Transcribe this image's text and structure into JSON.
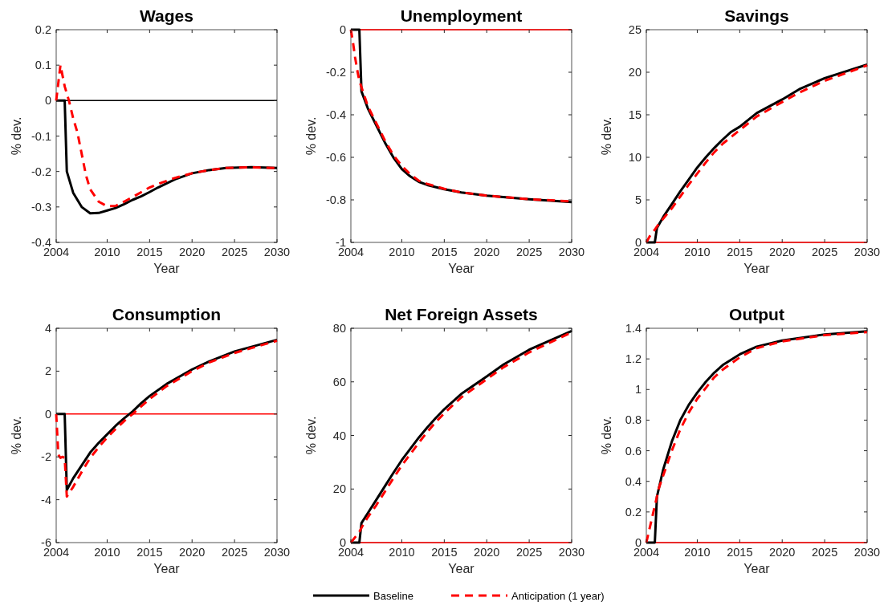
{
  "chart_data": [
    {
      "type": "line",
      "title": "Wages",
      "xlabel": "Year",
      "ylabel": "% dev.",
      "xlim": [
        2004,
        2030
      ],
      "xticks": [
        2004,
        2010,
        2015,
        2020,
        2025,
        2030
      ],
      "ylim": [
        -0.4,
        0.2
      ],
      "yticks": [
        -0.4,
        -0.3,
        -0.2,
        -0.1,
        0,
        0.1,
        0.2
      ],
      "legend": "bottom",
      "series": [
        {
          "color": "#000000",
          "line_style": "solid",
          "x": [
            2004,
            2030
          ],
          "values": [
            0,
            0
          ]
        },
        {
          "name": "Baseline",
          "color": "#000000",
          "line_style": "solid",
          "x": [
            2004,
            2005,
            2005.25,
            2006,
            2007,
            2008,
            2009,
            2010,
            2011,
            2012,
            2013,
            2014,
            2015,
            2016,
            2018,
            2020,
            2022,
            2024,
            2027,
            2030
          ],
          "values": [
            0,
            0,
            -0.2,
            -0.26,
            -0.3,
            -0.318,
            -0.317,
            -0.31,
            -0.303,
            -0.292,
            -0.28,
            -0.27,
            -0.258,
            -0.245,
            -0.222,
            -0.205,
            -0.196,
            -0.19,
            -0.188,
            -0.19
          ]
        },
        {
          "name": "Anticipation (1 year)",
          "color": "#ff0000",
          "line_style": "dashed",
          "x": [
            2004,
            2004.5,
            2005,
            2005.5,
            2006,
            2006.5,
            2007,
            2007.5,
            2008,
            2009,
            2010,
            2011,
            2012,
            2013,
            2015,
            2016,
            2018,
            2020,
            2022,
            2024,
            2027,
            2030
          ],
          "values": [
            0,
            0.1,
            0.04,
            0,
            -0.05,
            -0.09,
            -0.15,
            -0.21,
            -0.25,
            -0.285,
            -0.298,
            -0.297,
            -0.285,
            -0.272,
            -0.245,
            -0.235,
            -0.218,
            -0.205,
            -0.196,
            -0.19,
            -0.188,
            -0.19
          ]
        }
      ]
    },
    {
      "type": "line",
      "title": "Unemployment",
      "xlabel": "Year",
      "ylabel": "% dev.",
      "xlim": [
        2004,
        2030
      ],
      "xticks": [
        2004,
        2010,
        2015,
        2020,
        2025,
        2030
      ],
      "ylim": [
        -1,
        0
      ],
      "yticks": [
        -1,
        -0.8,
        -0.6,
        -0.4,
        -0.2,
        0
      ],
      "series": [
        {
          "color": "#ff0000",
          "line_style": "solid",
          "x": [
            2004,
            2030
          ],
          "values": [
            0,
            0
          ]
        },
        {
          "color": "#000000",
          "line_style": "solid",
          "x": [
            2004,
            2005,
            2005.25,
            2006,
            2007,
            2008,
            2009,
            2010,
            2011,
            2012,
            2013,
            2015,
            2017,
            2020,
            2025,
            2030
          ],
          "values": [
            0,
            0,
            -0.29,
            -0.37,
            -0.45,
            -0.53,
            -0.6,
            -0.655,
            -0.69,
            -0.715,
            -0.73,
            -0.75,
            -0.765,
            -0.78,
            -0.797,
            -0.81
          ]
        },
        {
          "color": "#ff0000",
          "line_style": "dashed",
          "x": [
            2004,
            2004.25,
            2004.5,
            2004.75,
            2005,
            2005.5,
            2006,
            2007,
            2008,
            2009,
            2010,
            2011,
            2012,
            2013,
            2015,
            2017,
            2020,
            2025,
            2030
          ],
          "values": [
            0,
            -0.06,
            -0.13,
            -0.19,
            -0.24,
            -0.3,
            -0.36,
            -0.44,
            -0.52,
            -0.59,
            -0.64,
            -0.68,
            -0.71,
            -0.725,
            -0.748,
            -0.765,
            -0.78,
            -0.797,
            -0.807
          ]
        }
      ]
    },
    {
      "type": "line",
      "title": "Savings",
      "xlabel": "Year",
      "ylabel": "% dev.",
      "xlim": [
        2004,
        2030
      ],
      "xticks": [
        2004,
        2010,
        2015,
        2020,
        2025,
        2030
      ],
      "ylim": [
        0,
        25
      ],
      "yticks": [
        0,
        5,
        10,
        15,
        20,
        25
      ],
      "series": [
        {
          "color": "#ff0000",
          "line_style": "solid",
          "x": [
            2004,
            2030
          ],
          "values": [
            0,
            0
          ]
        },
        {
          "color": "#000000",
          "line_style": "solid",
          "x": [
            2004,
            2005,
            2005.25,
            2006,
            2007,
            2008,
            2009,
            2010,
            2011,
            2012,
            2013,
            2014,
            2015,
            2017,
            2020,
            2022,
            2025,
            2030
          ],
          "values": [
            0,
            0,
            1.7,
            3,
            4.5,
            6,
            7.4,
            8.8,
            10,
            11.1,
            12.1,
            13,
            13.6,
            15.2,
            16.8,
            18,
            19.3,
            20.9
          ]
        },
        {
          "color": "#ff0000",
          "line_style": "dashed",
          "x": [
            2004,
            2004.5,
            2005,
            2005.5,
            2006,
            2007,
            2008,
            2009,
            2010,
            2011,
            2012,
            2013,
            2015,
            2017,
            2020,
            2022,
            2025,
            2030
          ],
          "values": [
            0,
            0.9,
            1.5,
            2.2,
            2.8,
            4,
            5.4,
            6.8,
            8.1,
            9.4,
            10.6,
            11.6,
            13.2,
            14.8,
            16.5,
            17.6,
            19,
            20.8
          ]
        }
      ]
    },
    {
      "type": "line",
      "title": "Consumption",
      "xlabel": "Year",
      "ylabel": "% dev.",
      "xlim": [
        2004,
        2030
      ],
      "xticks": [
        2004,
        2010,
        2015,
        2020,
        2025,
        2030
      ],
      "ylim": [
        -6,
        4
      ],
      "yticks": [
        -6,
        -4,
        -2,
        0,
        2,
        4
      ],
      "series": [
        {
          "color": "#ff0000",
          "line_style": "solid",
          "x": [
            2004,
            2030
          ],
          "values": [
            0,
            0
          ]
        },
        {
          "color": "#000000",
          "line_style": "solid",
          "x": [
            2004,
            2005,
            2005.25,
            2006,
            2007,
            2008,
            2009,
            2010,
            2011,
            2012,
            2013,
            2014,
            2015,
            2017,
            2020,
            2022,
            2025,
            2030
          ],
          "values": [
            0,
            0,
            -3.55,
            -3,
            -2.4,
            -1.8,
            -1.35,
            -0.95,
            -0.55,
            -0.2,
            0.12,
            0.5,
            0.84,
            1.4,
            2.08,
            2.45,
            2.92,
            3.46
          ]
        },
        {
          "color": "#ff0000",
          "line_style": "dashed",
          "x": [
            2004,
            2004.25,
            2004.5,
            2004.75,
            2005,
            2005.25,
            2005.5,
            2006,
            2007,
            2008,
            2009,
            2010,
            2011,
            2012,
            2013,
            2014,
            2015,
            2017,
            2020,
            2022,
            2025,
            2030
          ],
          "values": [
            0,
            -1.9,
            -2.05,
            -2,
            -2.05,
            -3.85,
            -3.7,
            -3.4,
            -2.7,
            -2.05,
            -1.55,
            -1.1,
            -0.7,
            -0.33,
            0,
            0.35,
            0.7,
            1.3,
            2,
            2.4,
            2.85,
            3.42
          ]
        }
      ]
    },
    {
      "type": "line",
      "title": "Net Foreign Assets",
      "xlabel": "Year",
      "ylabel": "% dev.",
      "xlim": [
        2004,
        2030
      ],
      "xticks": [
        2004,
        2010,
        2015,
        2020,
        2025,
        2030
      ],
      "ylim": [
        0,
        80
      ],
      "yticks": [
        0,
        20,
        40,
        60,
        80
      ],
      "series": [
        {
          "color": "#ff0000",
          "line_style": "solid",
          "x": [
            2004,
            2030
          ],
          "values": [
            0,
            0
          ]
        },
        {
          "color": "#000000",
          "line_style": "solid",
          "x": [
            2004,
            2005,
            2005.25,
            2006,
            2007,
            2008,
            2009,
            2010,
            2011,
            2012,
            2013,
            2014,
            2015,
            2017,
            2020,
            2022,
            2025,
            2030
          ],
          "values": [
            0,
            0,
            7.3,
            11,
            16,
            21,
            26,
            30.8,
            35,
            39.2,
            43,
            46.5,
            49.8,
            55.5,
            62,
            66.5,
            72,
            79
          ]
        },
        {
          "color": "#ff0000",
          "line_style": "dashed",
          "x": [
            2004,
            2004.5,
            2005,
            2005.5,
            2006,
            2007,
            2008,
            2009,
            2010,
            2011,
            2012,
            2013,
            2014,
            2015,
            2017,
            2020,
            2022,
            2025,
            2030
          ],
          "values": [
            0,
            2,
            4,
            7,
            9.5,
            14,
            19,
            24,
            28.8,
            33,
            37.3,
            41.3,
            45,
            48.3,
            54.2,
            61,
            65.5,
            71,
            78.5
          ]
        }
      ]
    },
    {
      "type": "line",
      "title": "Output",
      "xlabel": "Year",
      "ylabel": "% dev.",
      "xlim": [
        2004,
        2030
      ],
      "xticks": [
        2004,
        2010,
        2015,
        2020,
        2025,
        2030
      ],
      "ylim": [
        0,
        1.4
      ],
      "yticks": [
        0,
        0.2,
        0.4,
        0.6,
        0.8,
        1,
        1.2,
        1.4
      ],
      "series": [
        {
          "color": "#ff0000",
          "line_style": "solid",
          "x": [
            2004,
            2030
          ],
          "values": [
            0,
            0
          ]
        },
        {
          "color": "#000000",
          "line_style": "solid",
          "x": [
            2004,
            2005,
            2005.25,
            2006,
            2007,
            2008,
            2009,
            2010,
            2011,
            2012,
            2013,
            2015,
            2017,
            2020,
            2025,
            2030
          ],
          "values": [
            0,
            0,
            0.3,
            0.48,
            0.66,
            0.8,
            0.9,
            0.98,
            1.05,
            1.11,
            1.16,
            1.23,
            1.28,
            1.32,
            1.36,
            1.38
          ]
        },
        {
          "color": "#ff0000",
          "line_style": "dashed",
          "x": [
            2004,
            2004.5,
            2005,
            2005.5,
            2006,
            2007,
            2008,
            2009,
            2010,
            2011,
            2012,
            2013,
            2015,
            2017,
            2020,
            2025,
            2030
          ],
          "values": [
            0,
            0.12,
            0.24,
            0.36,
            0.44,
            0.6,
            0.74,
            0.85,
            0.94,
            1.01,
            1.08,
            1.13,
            1.21,
            1.27,
            1.315,
            1.355,
            1.375
          ]
        }
      ]
    }
  ]
}
